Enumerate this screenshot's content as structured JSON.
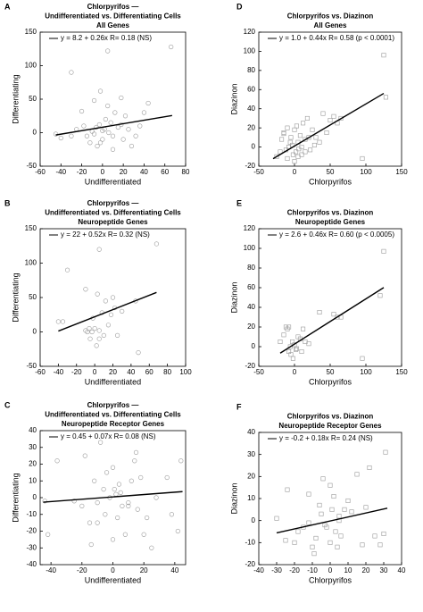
{
  "chart_data": [
    {
      "type": "scatter",
      "panel": "A",
      "title": [
        "Chlorpyrifos —",
        "Undifferentiated vs. Differentiating Cells",
        "All Genes"
      ],
      "x_label": "Undifferentiated",
      "y_label": "Differentiating",
      "xlim": [
        -60,
        80
      ],
      "xticks": [
        -60,
        -40,
        -20,
        0,
        20,
        40,
        60,
        80
      ],
      "ylim": [
        -50,
        150
      ],
      "yticks": [
        -50,
        0,
        50,
        100,
        150
      ],
      "series": [
        {
          "marker": "circle",
          "color": "#999999",
          "x": [
            -45,
            -40,
            -30,
            -25,
            -20,
            -18,
            -15,
            -12,
            -10,
            -8,
            -6,
            -5,
            -3,
            -2,
            0,
            2,
            3,
            5,
            6,
            8,
            10,
            12,
            15,
            18,
            20,
            22,
            25,
            28,
            32,
            36,
            40,
            44,
            -30,
            5,
            66,
            -2,
            18,
            10,
            -8,
            0
          ],
          "values": [
            -2,
            -8,
            -5,
            5,
            32,
            10,
            -5,
            -15,
            2,
            48,
            8,
            -20,
            12,
            62,
            -10,
            5,
            20,
            122,
            0,
            15,
            -25,
            30,
            8,
            52,
            -10,
            25,
            5,
            -20,
            -5,
            10,
            30,
            44,
            90,
            40,
            128,
            -15,
            12,
            -5,
            -2,
            3
          ]
        },
        {
          "name": "y = 8.2 + 0.26x   R= 0.18 (NS)",
          "marker": "line",
          "color": "#000000",
          "x": [
            -45,
            67
          ],
          "values": [
            -3.5,
            25.6
          ]
        }
      ]
    },
    {
      "type": "scatter",
      "panel": "B",
      "title": [
        "Chlorpyrifos —",
        "Undifferentiated vs. Differentiating Cells",
        "Neuropeptide Genes"
      ],
      "x_label": "Undifferentiated",
      "y_label": "Differentiating",
      "xlim": [
        -60,
        100
      ],
      "xticks": [
        -60,
        -40,
        -20,
        0,
        20,
        40,
        60,
        80,
        100
      ],
      "ylim": [
        -50,
        150
      ],
      "yticks": [
        -50,
        0,
        50,
        100,
        150
      ],
      "series": [
        {
          "marker": "circle",
          "color": "#999999",
          "x": [
            -40,
            -35,
            -30,
            -10,
            -8,
            -6,
            -5,
            -3,
            -2,
            0,
            2,
            3,
            5,
            5,
            8,
            10,
            12,
            15,
            18,
            20,
            22,
            25,
            45,
            48,
            68,
            5,
            -10,
            30
          ],
          "values": [
            15,
            15,
            90,
            62,
            0,
            5,
            -10,
            0,
            20,
            5,
            -20,
            55,
            120,
            2,
            28,
            -5,
            45,
            10,
            25,
            50,
            35,
            -5,
            45,
            -30,
            128,
            -10,
            2,
            30
          ]
        },
        {
          "name": "y = 22 + 0.52x   R= 0.32 (NS)",
          "marker": "line",
          "color": "#000000",
          "x": [
            -40,
            68
          ],
          "values": [
            1.2,
            57.4
          ]
        }
      ]
    },
    {
      "type": "scatter",
      "panel": "C",
      "title": [
        "Chlorpyrifos —",
        "Undifferentiated vs. Differentiating Cells",
        "Neuropeptide Receptor Genes"
      ],
      "x_label": "Undifferentiated",
      "y_label": "Differentiating",
      "xlim": [
        -47,
        47
      ],
      "xticks": [
        -40,
        -20,
        0,
        20,
        40
      ],
      "ylim": [
        -40,
        40
      ],
      "yticks": [
        -40,
        -30,
        -20,
        -10,
        0,
        10,
        20,
        30,
        40
      ],
      "series": [
        {
          "marker": "circle",
          "color": "#999999",
          "x": [
            -44,
            -42,
            -36,
            -20,
            -18,
            -15,
            -14,
            -12,
            -10,
            -8,
            -6,
            -5,
            -4,
            -2,
            0,
            1,
            2,
            3,
            4,
            5,
            6,
            8,
            10,
            12,
            14,
            15,
            16,
            18,
            20,
            22,
            25,
            28,
            35,
            38,
            42,
            44,
            -10,
            0,
            10,
            -25
          ],
          "values": [
            -2,
            -22,
            22,
            -5,
            25,
            -15,
            -28,
            10,
            -3,
            33,
            5,
            -10,
            15,
            0,
            -25,
            5,
            2,
            -12,
            8,
            3,
            -5,
            -22,
            -3,
            10,
            22,
            27,
            -7,
            12,
            -22,
            -12,
            -30,
            0,
            12,
            -10,
            -20,
            22,
            -15,
            18,
            -5,
            -2
          ]
        },
        {
          "name": "y = 0.45 + 0.07x   R= 0.08 (NS)",
          "marker": "line",
          "color": "#000000",
          "x": [
            -45,
            45
          ],
          "values": [
            -2.7,
            3.6
          ]
        }
      ]
    },
    {
      "type": "scatter",
      "panel": "D",
      "title": [
        "Chlorpyrifos vs. Diazinon",
        "All Genes"
      ],
      "x_label": "Chlorpyrifos",
      "y_label": "Diazinon",
      "xlim": [
        -50,
        150
      ],
      "xticks": [
        -50,
        0,
        50,
        100,
        150
      ],
      "ylim": [
        -20,
        120
      ],
      "yticks": [
        -20,
        0,
        20,
        40,
        60,
        80,
        100,
        120
      ],
      "series": [
        {
          "marker": "square",
          "color": "#999999",
          "x": [
            -25,
            -20,
            -18,
            -15,
            -12,
            -10,
            -8,
            -6,
            -5,
            -3,
            -2,
            0,
            2,
            3,
            5,
            6,
            8,
            10,
            12,
            15,
            18,
            20,
            22,
            25,
            28,
            30,
            35,
            40,
            45,
            50,
            55,
            60,
            65,
            95,
            125,
            128,
            -10,
            0,
            5,
            15,
            -15,
            10
          ],
          "values": [
            -10,
            -5,
            8,
            15,
            -3,
            -12,
            0,
            5,
            10,
            2,
            -8,
            18,
            -5,
            22,
            5,
            -2,
            12,
            0,
            25,
            8,
            30,
            10,
            -3,
            18,
            2,
            10,
            5,
            35,
            15,
            28,
            32,
            25,
            30,
            -12,
            96,
            52,
            20,
            -15,
            -10,
            -5,
            14,
            -8
          ]
        },
        {
          "name": "y = 1.0 + 0.44x   R= 0.58 (p < 0.0001)",
          "marker": "line",
          "color": "#000000",
          "x": [
            -30,
            125
          ],
          "values": [
            -12.2,
            56
          ]
        }
      ]
    },
    {
      "type": "scatter",
      "panel": "E",
      "title": [
        "Chlorpyrifos vs. Diazinon",
        "Neuropeptide Genes"
      ],
      "x_label": "Chlorpyrifos",
      "y_label": "Diazinon",
      "xlim": [
        -50,
        150
      ],
      "xticks": [
        -50,
        0,
        50,
        100,
        150
      ],
      "ylim": [
        -20,
        120
      ],
      "yticks": [
        -20,
        0,
        20,
        40,
        60,
        80,
        100,
        120
      ],
      "series": [
        {
          "marker": "square",
          "color": "#999999",
          "x": [
            -20,
            -15,
            -12,
            -10,
            -8,
            -6,
            -5,
            -3,
            -2,
            0,
            2,
            5,
            8,
            10,
            12,
            15,
            20,
            35,
            55,
            60,
            65,
            95,
            120,
            125,
            -8,
            3
          ],
          "values": [
            5,
            12,
            20,
            18,
            -5,
            0,
            -8,
            5,
            -12,
            2,
            -3,
            10,
            8,
            -5,
            18,
            5,
            3,
            35,
            33,
            30,
            30,
            -12,
            52,
            97,
            20,
            -2
          ]
        },
        {
          "name": "y = 2.6 + 0.46x   R= 0.60 (p < 0.0005)",
          "marker": "line",
          "color": "#000000",
          "x": [
            -20,
            125
          ],
          "values": [
            -6.6,
            60.1
          ]
        }
      ]
    },
    {
      "type": "scatter",
      "panel": "F",
      "title": [
        "Chlorpyrifos vs. Diazinon",
        "Neuropeptide Receptor Genes"
      ],
      "x_label": "Chlorpyrifos",
      "y_label": "Diazinon",
      "xlim": [
        -40,
        40
      ],
      "xticks": [
        -40,
        -30,
        -20,
        -10,
        0,
        10,
        20,
        30,
        40
      ],
      "ylim": [
        -20,
        40
      ],
      "yticks": [
        -20,
        -10,
        0,
        10,
        20,
        30,
        40
      ],
      "series": [
        {
          "marker": "square",
          "color": "#999999",
          "x": [
            -30,
            -25,
            -24,
            -20,
            -18,
            -15,
            -12,
            -10,
            -9,
            -8,
            -6,
            -5,
            -4,
            -2,
            0,
            1,
            2,
            3,
            4,
            5,
            6,
            8,
            10,
            12,
            15,
            18,
            20,
            22,
            25,
            28,
            30,
            31,
            -3,
            0,
            5,
            -12
          ],
          "values": [
            1,
            -9,
            14,
            -10,
            -5,
            -3,
            12,
            -12,
            -15,
            -8,
            7,
            3,
            19,
            -3,
            -10,
            5,
            11,
            -5,
            -12,
            0,
            -7,
            5,
            9,
            4,
            21,
            -11,
            6,
            24,
            -7,
            -11,
            -6,
            31,
            -2,
            16,
            2,
            -1
          ]
        },
        {
          "name": "y = -0.2 + 0.18x   R= 0.24 (NS)",
          "marker": "line",
          "color": "#000000",
          "x": [
            -30,
            32
          ],
          "values": [
            -5.6,
            5.6
          ]
        }
      ]
    }
  ]
}
